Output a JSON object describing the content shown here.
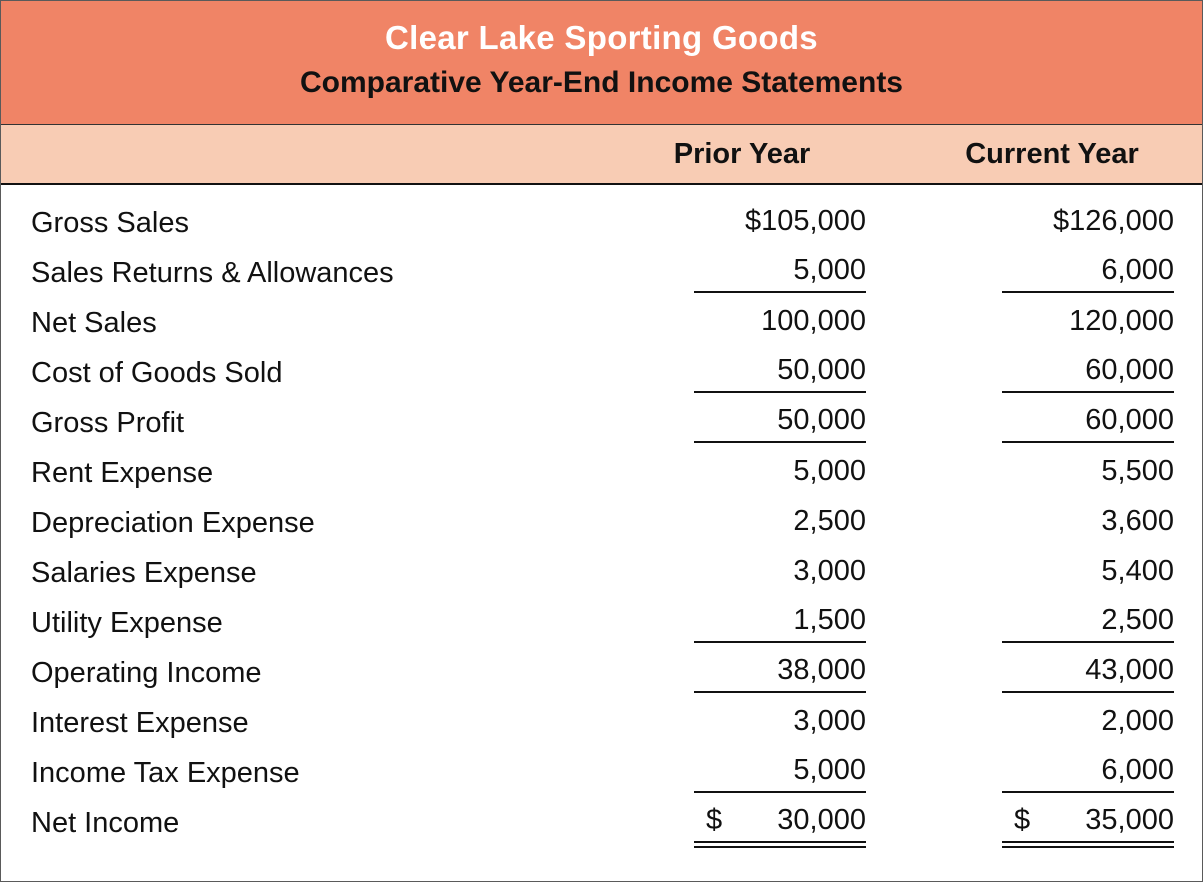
{
  "header": {
    "title": "Clear Lake Sporting Goods",
    "subtitle": "Comparative Year-End Income Statements"
  },
  "columns": {
    "prior_label": "Prior Year",
    "current_label": "Current Year"
  },
  "colors": {
    "header_bg": "#F08466",
    "band_bg": "#F8CCB4",
    "title_text": "#FFFFFF",
    "text": "#111111",
    "rule": "#111111"
  },
  "rows": [
    {
      "label": "Gross Sales",
      "prior": "$105,000",
      "current": "$126,000",
      "underline": "none"
    },
    {
      "label": "Sales Returns & Allowances",
      "prior": "5,000",
      "current": "6,000",
      "underline": "single"
    },
    {
      "label": "Net Sales",
      "prior": "100,000",
      "current": "120,000",
      "underline": "none"
    },
    {
      "label": "Cost of Goods Sold",
      "prior": "50,000",
      "current": "60,000",
      "underline": "single"
    },
    {
      "label": "Gross Profit",
      "prior": "50,000",
      "current": "60,000",
      "underline": "single"
    },
    {
      "label": "Rent Expense",
      "prior": "5,000",
      "current": "5,500",
      "underline": "none"
    },
    {
      "label": "Depreciation Expense",
      "prior": "2,500",
      "current": "3,600",
      "underline": "none"
    },
    {
      "label": "Salaries Expense",
      "prior": "3,000",
      "current": "5,400",
      "underline": "none"
    },
    {
      "label": "Utility Expense",
      "prior": "1,500",
      "current": "2,500",
      "underline": "single"
    },
    {
      "label": "Operating Income",
      "prior": "38,000",
      "current": "43,000",
      "underline": "single"
    },
    {
      "label": "Interest Expense",
      "prior": "3,000",
      "current": "2,000",
      "underline": "none"
    },
    {
      "label": "Income Tax Expense",
      "prior": "5,000",
      "current": "6,000",
      "underline": "single"
    },
    {
      "label": "Net Income",
      "prior_sign": "$",
      "prior": "30,000",
      "current_sign": "$",
      "current": "35,000",
      "underline": "double"
    }
  ]
}
